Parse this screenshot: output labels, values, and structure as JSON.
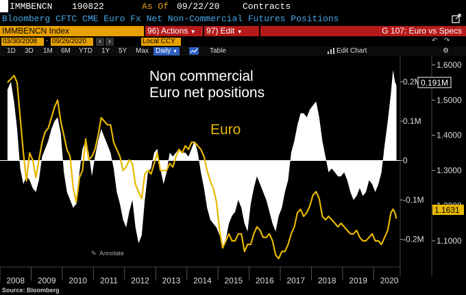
{
  "header": {
    "ticker": "IMMBENCN",
    "date_code": "190822",
    "as_of_label": "As Of",
    "as_of_date": "09/22/20",
    "units": "Contracts",
    "description": "Bloomberg CFTC CME Euro Fx Net Non-Commercial Futures Positions",
    "security": "IMMBENCN Index",
    "actions_label": "96) Actions",
    "edit_label": "97) Edit",
    "chart_name": "G 107: Euro vs Specs"
  },
  "toolbar": {
    "start_date": "03/30/2008",
    "end_date": "09/26/2020",
    "currency": "Local CCY",
    "periods": [
      "1D",
      "3D",
      "1M",
      "6M",
      "YTD",
      "1Y",
      "5Y",
      "Max"
    ],
    "selected_period": "Daily",
    "table_label": "Table",
    "edit_chart_label": "Edit Chart"
  },
  "chart_data": {
    "type": "area",
    "annotations": [
      "Non commercial",
      "Euro net positions",
      "Euro"
    ],
    "annotate_button": "Annotate",
    "source": "Source: Bloomberg",
    "x_range": [
      "2008-03-30",
      "2020-09-26"
    ],
    "x_ticks": [
      "2008",
      "2009",
      "2010",
      "2011",
      "2012",
      "2013",
      "2014",
      "2015",
      "2016",
      "2017",
      "2018",
      "2019",
      "2020"
    ],
    "left_axis": {
      "ylim": [
        -0.27,
        0.265
      ],
      "tick_labels": [
        "0.2M",
        "0.1M",
        "0",
        "-0.1M",
        "-0.2M"
      ],
      "ticks": [
        0.2,
        0.1,
        0,
        -0.1,
        -0.2
      ]
    },
    "right_axis": {
      "ylim": [
        1.026,
        1.625
      ],
      "tick_labels": [
        "1.6000",
        "1.5000",
        "1.4000",
        "1.3000",
        "1.2000",
        "1.1000"
      ],
      "ticks": [
        1.6,
        1.5,
        1.4,
        1.3,
        1.2,
        1.1
      ]
    },
    "series": [
      {
        "name": "Non commercial Euro net positions",
        "color": "#ffffff",
        "last_value_label": "0.191M",
        "points": [
          [
            2008.24,
            0.18
          ],
          [
            2008.35,
            0.2
          ],
          [
            2008.45,
            0.15
          ],
          [
            2008.55,
            0.08
          ],
          [
            2008.65,
            -0.02
          ],
          [
            2008.75,
            -0.06
          ],
          [
            2008.85,
            -0.04
          ],
          [
            2008.95,
            -0.05
          ],
          [
            2009.05,
            -0.07
          ],
          [
            2009.15,
            -0.08
          ],
          [
            2009.25,
            -0.05
          ],
          [
            2009.35,
            0.01
          ],
          [
            2009.45,
            0.03
          ],
          [
            2009.55,
            0.05
          ],
          [
            2009.65,
            0.08
          ],
          [
            2009.75,
            0.1
          ],
          [
            2009.85,
            0.11
          ],
          [
            2009.95,
            0.07
          ],
          [
            2010.05,
            -0.03
          ],
          [
            2010.15,
            -0.08
          ],
          [
            2010.25,
            -0.1
          ],
          [
            2010.35,
            -0.12
          ],
          [
            2010.45,
            -0.11
          ],
          [
            2010.55,
            -0.03
          ],
          [
            2010.65,
            0.03
          ],
          [
            2010.75,
            0.05
          ],
          [
            2010.85,
            0.02
          ],
          [
            2010.95,
            -0.04
          ],
          [
            2011.05,
            0.01
          ],
          [
            2011.15,
            0.05
          ],
          [
            2011.25,
            0.08
          ],
          [
            2011.35,
            0.06
          ],
          [
            2011.45,
            0.04
          ],
          [
            2011.55,
            0.02
          ],
          [
            2011.65,
            -0.02
          ],
          [
            2011.75,
            -0.08
          ],
          [
            2011.85,
            -0.11
          ],
          [
            2011.95,
            -0.15
          ],
          [
            2012.05,
            -0.17
          ],
          [
            2012.15,
            -0.13
          ],
          [
            2012.25,
            -0.1
          ],
          [
            2012.35,
            -0.17
          ],
          [
            2012.45,
            -0.21
          ],
          [
            2012.55,
            -0.19
          ],
          [
            2012.65,
            -0.1
          ],
          [
            2012.75,
            -0.03
          ],
          [
            2012.85,
            -0.02
          ],
          [
            2012.95,
            0.02
          ],
          [
            2013.05,
            0.03
          ],
          [
            2013.15,
            -0.02
          ],
          [
            2013.25,
            -0.06
          ],
          [
            2013.35,
            -0.03
          ],
          [
            2013.45,
            0.02
          ],
          [
            2013.55,
            0.01
          ],
          [
            2013.65,
            0.02
          ],
          [
            2013.75,
            0.03
          ],
          [
            2013.85,
            0.02
          ],
          [
            2013.95,
            0.02
          ],
          [
            2014.05,
            0.01
          ],
          [
            2014.15,
            0.03
          ],
          [
            2014.25,
            0.05
          ],
          [
            2014.35,
            0.02
          ],
          [
            2014.45,
            -0.03
          ],
          [
            2014.55,
            -0.07
          ],
          [
            2014.65,
            -0.12
          ],
          [
            2014.75,
            -0.15
          ],
          [
            2014.85,
            -0.16
          ],
          [
            2014.95,
            -0.17
          ],
          [
            2015.05,
            -0.19
          ],
          [
            2015.15,
            -0.22
          ],
          [
            2015.25,
            -0.2
          ],
          [
            2015.35,
            -0.16
          ],
          [
            2015.45,
            -0.14
          ],
          [
            2015.55,
            -0.13
          ],
          [
            2015.65,
            -0.1
          ],
          [
            2015.75,
            -0.12
          ],
          [
            2015.85,
            -0.16
          ],
          [
            2015.95,
            -0.18
          ],
          [
            2016.05,
            -0.11
          ],
          [
            2016.15,
            -0.07
          ],
          [
            2016.25,
            -0.04
          ],
          [
            2016.35,
            -0.06
          ],
          [
            2016.45,
            -0.08
          ],
          [
            2016.55,
            -0.1
          ],
          [
            2016.65,
            -0.13
          ],
          [
            2016.75,
            -0.16
          ],
          [
            2016.85,
            -0.18
          ],
          [
            2016.95,
            -0.14
          ],
          [
            2017.05,
            -0.12
          ],
          [
            2017.15,
            -0.08
          ],
          [
            2017.25,
            -0.05
          ],
          [
            2017.35,
            0.02
          ],
          [
            2017.45,
            0.05
          ],
          [
            2017.55,
            0.09
          ],
          [
            2017.65,
            0.12
          ],
          [
            2017.75,
            0.12
          ],
          [
            2017.85,
            0.11
          ],
          [
            2017.95,
            0.13
          ],
          [
            2018.05,
            0.14
          ],
          [
            2018.15,
            0.15
          ],
          [
            2018.25,
            0.11
          ],
          [
            2018.35,
            0.05
          ],
          [
            2018.45,
            0.01
          ],
          [
            2018.55,
            -0.03
          ],
          [
            2018.65,
            -0.02
          ],
          [
            2018.75,
            -0.03
          ],
          [
            2018.85,
            -0.04
          ],
          [
            2018.95,
            -0.04
          ],
          [
            2019.05,
            -0.03
          ],
          [
            2019.15,
            -0.05
          ],
          [
            2019.25,
            -0.08
          ],
          [
            2019.35,
            -0.1
          ],
          [
            2019.45,
            -0.09
          ],
          [
            2019.55,
            -0.07
          ],
          [
            2019.65,
            -0.09
          ],
          [
            2019.75,
            -0.08
          ],
          [
            2019.85,
            -0.05
          ],
          [
            2019.95,
            -0.06
          ],
          [
            2020.05,
            -0.08
          ],
          [
            2020.15,
            -0.06
          ],
          [
            2020.25,
            -0.03
          ],
          [
            2020.35,
            0.04
          ],
          [
            2020.45,
            0.1
          ],
          [
            2020.55,
            0.17
          ],
          [
            2020.62,
            0.23
          ],
          [
            2020.68,
            0.2
          ],
          [
            2020.73,
            0.191
          ]
        ]
      },
      {
        "name": "Euro",
        "color": "#e8b800",
        "last_value_label": "1.1631",
        "points": [
          [
            2008.24,
            1.55
          ],
          [
            2008.35,
            1.56
          ],
          [
            2008.45,
            1.57
          ],
          [
            2008.55,
            1.55
          ],
          [
            2008.65,
            1.45
          ],
          [
            2008.75,
            1.35
          ],
          [
            2008.85,
            1.27
          ],
          [
            2008.95,
            1.35
          ],
          [
            2009.05,
            1.33
          ],
          [
            2009.15,
            1.28
          ],
          [
            2009.25,
            1.33
          ],
          [
            2009.35,
            1.38
          ],
          [
            2009.45,
            1.41
          ],
          [
            2009.55,
            1.42
          ],
          [
            2009.65,
            1.45
          ],
          [
            2009.75,
            1.48
          ],
          [
            2009.85,
            1.5
          ],
          [
            2009.95,
            1.44
          ],
          [
            2010.05,
            1.4
          ],
          [
            2010.15,
            1.36
          ],
          [
            2010.25,
            1.34
          ],
          [
            2010.35,
            1.25
          ],
          [
            2010.45,
            1.21
          ],
          [
            2010.55,
            1.28
          ],
          [
            2010.65,
            1.3
          ],
          [
            2010.75,
            1.39
          ],
          [
            2010.85,
            1.33
          ],
          [
            2010.95,
            1.34
          ],
          [
            2011.05,
            1.36
          ],
          [
            2011.15,
            1.4
          ],
          [
            2011.25,
            1.45
          ],
          [
            2011.35,
            1.44
          ],
          [
            2011.45,
            1.43
          ],
          [
            2011.55,
            1.43
          ],
          [
            2011.65,
            1.38
          ],
          [
            2011.75,
            1.36
          ],
          [
            2011.85,
            1.34
          ],
          [
            2011.95,
            1.3
          ],
          [
            2012.05,
            1.31
          ],
          [
            2012.15,
            1.33
          ],
          [
            2012.25,
            1.32
          ],
          [
            2012.35,
            1.26
          ],
          [
            2012.45,
            1.24
          ],
          [
            2012.55,
            1.22
          ],
          [
            2012.65,
            1.29
          ],
          [
            2012.75,
            1.3
          ],
          [
            2012.85,
            1.29
          ],
          [
            2012.95,
            1.32
          ],
          [
            2013.05,
            1.35
          ],
          [
            2013.15,
            1.3
          ],
          [
            2013.25,
            1.3
          ],
          [
            2013.35,
            1.3
          ],
          [
            2013.45,
            1.32
          ],
          [
            2013.55,
            1.31
          ],
          [
            2013.65,
            1.34
          ],
          [
            2013.75,
            1.36
          ],
          [
            2013.85,
            1.35
          ],
          [
            2013.95,
            1.37
          ],
          [
            2014.05,
            1.36
          ],
          [
            2014.15,
            1.38
          ],
          [
            2014.25,
            1.38
          ],
          [
            2014.35,
            1.37
          ],
          [
            2014.45,
            1.36
          ],
          [
            2014.55,
            1.34
          ],
          [
            2014.65,
            1.3
          ],
          [
            2014.75,
            1.27
          ],
          [
            2014.85,
            1.25
          ],
          [
            2014.95,
            1.21
          ],
          [
            2015.05,
            1.13
          ],
          [
            2015.15,
            1.08
          ],
          [
            2015.25,
            1.1
          ],
          [
            2015.35,
            1.12
          ],
          [
            2015.45,
            1.1
          ],
          [
            2015.55,
            1.1
          ],
          [
            2015.65,
            1.12
          ],
          [
            2015.75,
            1.12
          ],
          [
            2015.85,
            1.07
          ],
          [
            2015.95,
            1.09
          ],
          [
            2016.05,
            1.09
          ],
          [
            2016.15,
            1.12
          ],
          [
            2016.25,
            1.14
          ],
          [
            2016.35,
            1.13
          ],
          [
            2016.45,
            1.11
          ],
          [
            2016.55,
            1.11
          ],
          [
            2016.65,
            1.12
          ],
          [
            2016.75,
            1.1
          ],
          [
            2016.85,
            1.06
          ],
          [
            2016.95,
            1.05
          ],
          [
            2017.05,
            1.07
          ],
          [
            2017.15,
            1.07
          ],
          [
            2017.25,
            1.09
          ],
          [
            2017.35,
            1.12
          ],
          [
            2017.45,
            1.14
          ],
          [
            2017.55,
            1.18
          ],
          [
            2017.65,
            1.19
          ],
          [
            2017.75,
            1.17
          ],
          [
            2017.85,
            1.18
          ],
          [
            2017.95,
            1.2
          ],
          [
            2018.05,
            1.23
          ],
          [
            2018.15,
            1.24
          ],
          [
            2018.25,
            1.22
          ],
          [
            2018.35,
            1.17
          ],
          [
            2018.45,
            1.16
          ],
          [
            2018.55,
            1.17
          ],
          [
            2018.65,
            1.16
          ],
          [
            2018.75,
            1.15
          ],
          [
            2018.85,
            1.14
          ],
          [
            2018.95,
            1.15
          ],
          [
            2019.05,
            1.14
          ],
          [
            2019.15,
            1.13
          ],
          [
            2019.25,
            1.12
          ],
          [
            2019.35,
            1.12
          ],
          [
            2019.45,
            1.13
          ],
          [
            2019.55,
            1.11
          ],
          [
            2019.65,
            1.1
          ],
          [
            2019.75,
            1.1
          ],
          [
            2019.85,
            1.11
          ],
          [
            2019.95,
            1.12
          ],
          [
            2020.05,
            1.1
          ],
          [
            2020.15,
            1.1
          ],
          [
            2020.25,
            1.09
          ],
          [
            2020.35,
            1.11
          ],
          [
            2020.45,
            1.13
          ],
          [
            2020.55,
            1.18
          ],
          [
            2020.62,
            1.19
          ],
          [
            2020.68,
            1.18
          ],
          [
            2020.73,
            1.1631
          ]
        ]
      }
    ]
  }
}
